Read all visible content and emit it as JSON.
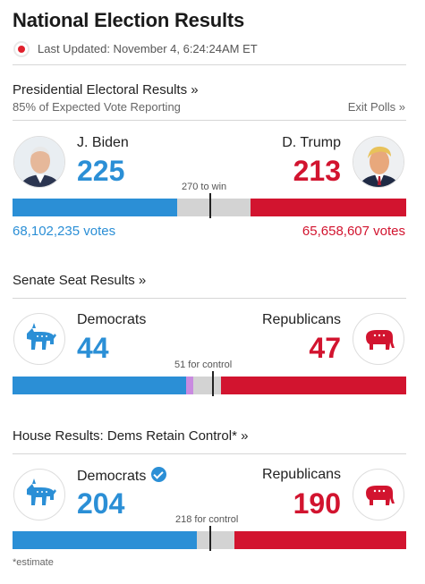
{
  "header": {
    "title": "National Election Results",
    "updated": "Last Updated: November 4, 6:24:24AM ET"
  },
  "presidential": {
    "heading": "Presidential Electoral Results »",
    "reporting": "85% of Expected Vote Reporting",
    "exit_polls": "Exit Polls »",
    "left": {
      "name": "J. Biden",
      "count": "225",
      "votes": "68,102,235 votes"
    },
    "right": {
      "name": "D. Trump",
      "count": "213",
      "votes": "65,658,607 votes"
    },
    "target": "270 to win",
    "bar": {
      "total": 538,
      "left_value": 225,
      "right_value": 213,
      "target_value": 270
    }
  },
  "senate": {
    "heading": "Senate Seat Results »",
    "left": {
      "name": "Democrats",
      "count": "44",
      "icon": "donkey-icon"
    },
    "right": {
      "name": "Republicans",
      "count": "47",
      "icon": "elephant-icon"
    },
    "target": "51 for control",
    "bar": {
      "total": 100,
      "left_value": 44,
      "independent_value": 2,
      "right_value": 47,
      "target_value": 51
    }
  },
  "house": {
    "heading": "House Results: Dems Retain Control* »",
    "left": {
      "name": "Democrats",
      "count": "204",
      "icon": "donkey-icon"
    },
    "right": {
      "name": "Republicans",
      "count": "190",
      "icon": "elephant-icon"
    },
    "target": "218 for control",
    "bar": {
      "total": 435,
      "left_value": 204,
      "right_value": 190,
      "target_value": 218
    }
  },
  "footnote": "*estimate",
  "colors": {
    "dem": "#2b8fd6",
    "rep": "#d2142f",
    "ind": "#c98be0",
    "neutral": "#d3d3d3"
  }
}
